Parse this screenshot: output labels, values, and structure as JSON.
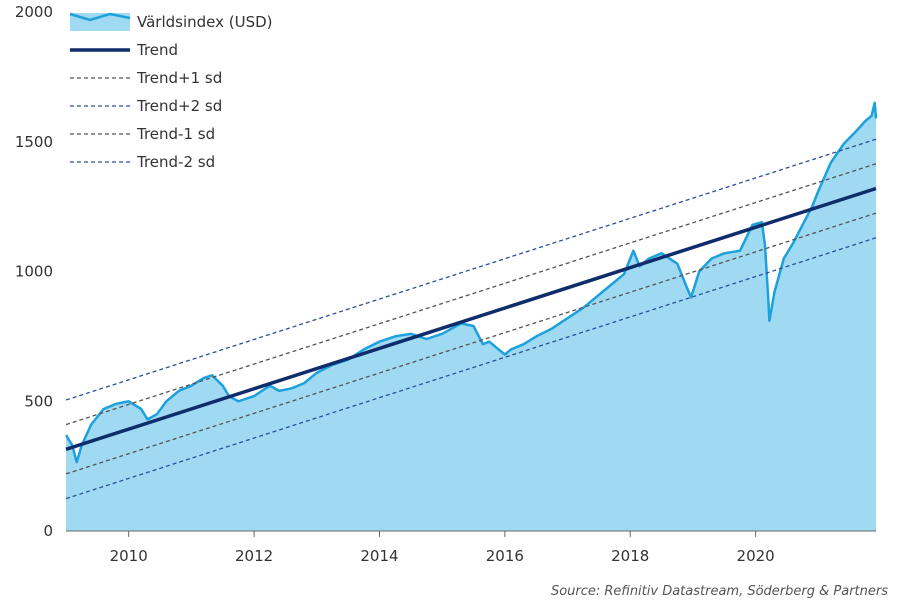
{
  "source": "Source: Refinitiv Datastream, Söderberg & Partners",
  "colors": {
    "area_fill": "#9fd9f2",
    "index_line": "#1da1dc",
    "trend": "#0f2d6b",
    "sd1": "#555555",
    "sd2": "#2e4f9a",
    "axis": "#666666"
  },
  "chart_data": {
    "type": "area",
    "title": "",
    "xlabel": "",
    "ylabel": "",
    "xlim": [
      2009.0,
      2021.92
    ],
    "ylim": [
      0,
      2000
    ],
    "x_ticks": [
      2010,
      2012,
      2014,
      2016,
      2018,
      2020
    ],
    "x_tick_labels": [
      "2010",
      "2012",
      "2014",
      "2016",
      "2018",
      "2020"
    ],
    "y_ticks": [
      0,
      500,
      1000,
      1500,
      2000
    ],
    "y_tick_labels": [
      "0",
      "500",
      "1000",
      "1500",
      "2000"
    ],
    "grid": false,
    "legend_position": "top-left",
    "series": [
      {
        "name": "Världsindex (USD)",
        "style": "area",
        "x": [
          2009.0,
          2009.1,
          2009.17,
          2009.25,
          2009.4,
          2009.6,
          2009.8,
          2010.0,
          2010.2,
          2010.3,
          2010.45,
          2010.6,
          2010.8,
          2011.0,
          2011.2,
          2011.33,
          2011.5,
          2011.6,
          2011.75,
          2012.0,
          2012.25,
          2012.4,
          2012.6,
          2012.8,
          2013.0,
          2013.25,
          2013.5,
          2013.75,
          2014.0,
          2014.25,
          2014.5,
          2014.75,
          2015.0,
          2015.3,
          2015.5,
          2015.65,
          2015.75,
          2015.9,
          2016.0,
          2016.1,
          2016.3,
          2016.5,
          2016.75,
          2017.0,
          2017.25,
          2017.5,
          2017.75,
          2017.9,
          2018.05,
          2018.15,
          2018.3,
          2018.5,
          2018.75,
          2018.9,
          2018.97,
          2019.1,
          2019.3,
          2019.5,
          2019.75,
          2019.95,
          2020.1,
          2020.15,
          2020.2,
          2020.22,
          2020.3,
          2020.45,
          2020.6,
          2020.75,
          2020.9,
          2021.0,
          2021.2,
          2021.4,
          2021.6,
          2021.75,
          2021.85,
          2021.9,
          2021.92
        ],
        "values": [
          370,
          330,
          265,
          330,
          410,
          470,
          490,
          500,
          470,
          430,
          450,
          500,
          540,
          560,
          590,
          600,
          560,
          520,
          500,
          520,
          560,
          540,
          550,
          570,
          610,
          640,
          660,
          700,
          730,
          750,
          760,
          740,
          760,
          800,
          790,
          720,
          730,
          700,
          680,
          700,
          720,
          750,
          780,
          820,
          860,
          910,
          960,
          990,
          1080,
          1020,
          1050,
          1070,
          1030,
          940,
          900,
          1000,
          1050,
          1070,
          1080,
          1180,
          1190,
          1100,
          900,
          810,
          920,
          1050,
          1110,
          1180,
          1250,
          1310,
          1420,
          1490,
          1540,
          1580,
          1600,
          1650,
          1590
        ]
      },
      {
        "name": "Trend",
        "style": "line",
        "x": [
          2009.0,
          2021.92
        ],
        "values": [
          315,
          1320
        ]
      },
      {
        "name": "Trend+1 sd",
        "style": "dashed",
        "x": [
          2009.0,
          2021.92
        ],
        "values": [
          410,
          1415
        ]
      },
      {
        "name": "Trend+2 sd",
        "style": "dashed",
        "x": [
          2009.0,
          2021.92
        ],
        "values": [
          505,
          1510
        ]
      },
      {
        "name": "Trend-1 sd",
        "style": "dashed",
        "x": [
          2009.0,
          2021.92
        ],
        "values": [
          220,
          1225
        ]
      },
      {
        "name": "Trend-2 sd",
        "style": "dashed",
        "x": [
          2009.0,
          2021.92
        ],
        "values": [
          125,
          1130
        ]
      }
    ]
  }
}
